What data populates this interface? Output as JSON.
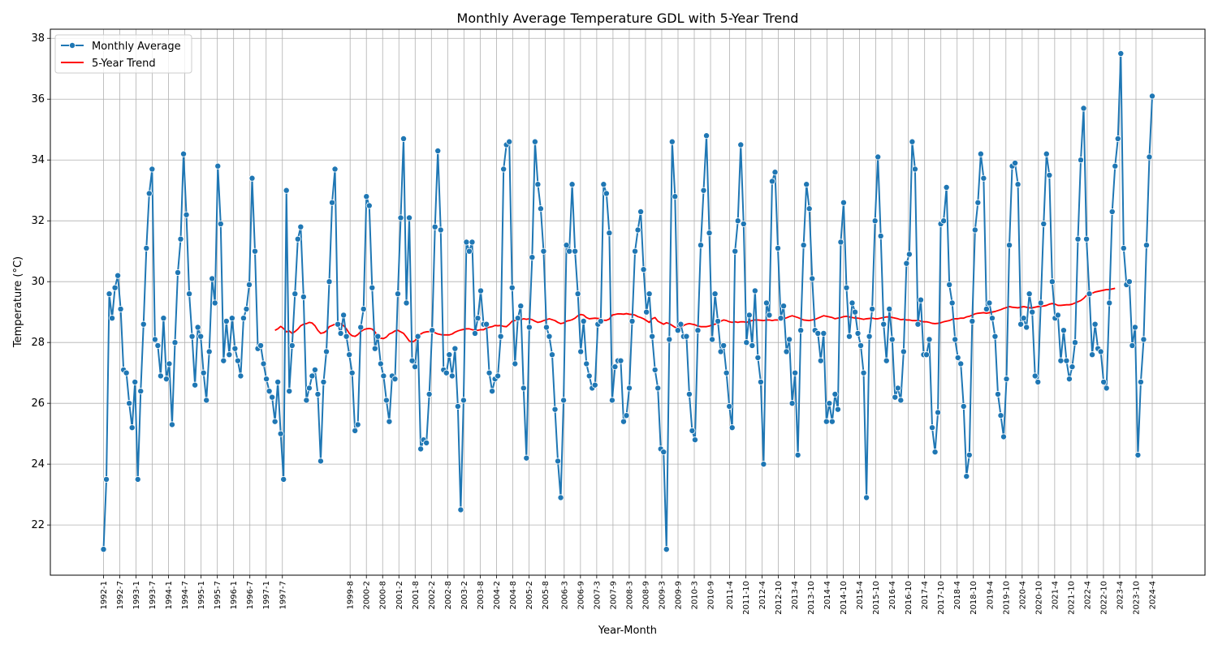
{
  "chart_data": {
    "type": "line",
    "title": "Monthly Average Temperature GDL with 5-Year Trend",
    "xlabel": "Year-Month",
    "ylabel": "Temperature (°C)",
    "ylim": [
      20.35,
      38.3
    ],
    "yticks": [
      22,
      24,
      26,
      28,
      30,
      32,
      34,
      36,
      38
    ],
    "grid": true,
    "legend_position": "top-left",
    "x_start": "1992-1",
    "x_end": "2024-4",
    "xtick_labels": [
      "1992-1",
      "1992-7",
      "1993-1",
      "1993-7",
      "1994-1",
      "1994-7",
      "1995-1",
      "1995-7",
      "1996-1",
      "1996-7",
      "1997-1",
      "1997-7",
      "1999-8",
      "2000-2",
      "2000-8",
      "2001-2",
      "2001-8",
      "2002-2",
      "2002-8",
      "2003-2",
      "2003-8",
      "2004-2",
      "2004-8",
      "2005-2",
      "2005-8",
      "2006-3",
      "2006-9",
      "2007-3",
      "2007-9",
      "2008-3",
      "2008-9",
      "2009-3",
      "2009-9",
      "2010-3",
      "2010-9",
      "2011-4",
      "2011-10",
      "2012-4",
      "2012-10",
      "2013-4",
      "2013-10",
      "2014-4",
      "2014-10",
      "2015-4",
      "2015-10",
      "2016-4",
      "2016-10",
      "2017-4",
      "2017-10",
      "2018-4",
      "2018-10",
      "2019-4",
      "2019-10",
      "2020-4",
      "2020-10",
      "2021-4",
      "2021-10",
      "2022-4",
      "2022-10",
      "2023-4",
      "2023-10",
      "2024-4"
    ],
    "series": [
      {
        "name": "Monthly Average",
        "color": "#1f77b4",
        "style": "line-with-circle-markers",
        "values": [
          21.2,
          23.5,
          29.6,
          28.8,
          29.8,
          30.2,
          29.1,
          27.1,
          27.0,
          26.0,
          25.2,
          26.7,
          23.5,
          26.4,
          28.6,
          31.1,
          32.9,
          33.7,
          28.1,
          27.9,
          26.9,
          28.8,
          26.8,
          27.3,
          25.3,
          28.0,
          30.3,
          31.4,
          34.2,
          32.2,
          29.6,
          28.2,
          26.6,
          28.5,
          28.2,
          27.0,
          26.1,
          27.7,
          30.1,
          29.3,
          33.8,
          31.9,
          27.4,
          28.7,
          27.6,
          28.8,
          27.8,
          27.4,
          26.9,
          28.8,
          29.1,
          29.9,
          33.4,
          31.0,
          27.8,
          27.9,
          27.3,
          26.8,
          26.4,
          26.2,
          25.4,
          26.7,
          25.0,
          23.5,
          33.0,
          26.4,
          27.9,
          29.6,
          31.4,
          31.8,
          29.5,
          26.1,
          26.5,
          26.9,
          27.1,
          26.3,
          24.1,
          26.7,
          27.7,
          30.0,
          32.6,
          33.7,
          28.6,
          28.3,
          28.9,
          28.2,
          27.6,
          27.0,
          25.1,
          25.3,
          28.5,
          29.1,
          32.8,
          32.5,
          29.8,
          27.8,
          28.2,
          27.3,
          26.9,
          26.1,
          25.4,
          26.9,
          26.8,
          29.6,
          32.1,
          34.7,
          29.3,
          32.1,
          27.4,
          27.2,
          28.2,
          24.5,
          24.8,
          24.7,
          26.3,
          28.4,
          31.8,
          34.3,
          31.7,
          27.1,
          27.0,
          27.6,
          26.9,
          27.8,
          25.9,
          22.5,
          26.1,
          31.3,
          31.0,
          31.3,
          28.3,
          28.8,
          29.7,
          28.6,
          28.6,
          27.0,
          26.4,
          26.8,
          26.9,
          28.2,
          33.7,
          34.5,
          34.6,
          29.8,
          27.3,
          28.8,
          29.2,
          26.5,
          24.2,
          28.5,
          30.8,
          34.6,
          33.2,
          32.4,
          31.0,
          28.5,
          28.2,
          27.6,
          25.8,
          24.1,
          22.9,
          26.1,
          31.2,
          31.0,
          33.2,
          31.0,
          29.6,
          27.7,
          28.7,
          27.3,
          26.9,
          26.5,
          26.6,
          28.6,
          28.7,
          33.2,
          32.9,
          31.6,
          26.1,
          27.2,
          27.4,
          27.4,
          25.4,
          25.6,
          26.5,
          28.7,
          31.0,
          31.7,
          32.3,
          30.4,
          29.0,
          29.6,
          28.2,
          27.1,
          26.5,
          24.5,
          24.4,
          21.2,
          28.1,
          34.6,
          32.8,
          28.4,
          28.6,
          28.2,
          28.2,
          26.3,
          25.1,
          24.8,
          28.4,
          31.2,
          33.0,
          34.8,
          31.6,
          28.1,
          29.6,
          28.7,
          27.7,
          27.9,
          27.0,
          25.9,
          25.2,
          31.0,
          32.0,
          34.5,
          31.9,
          28.0,
          28.9,
          27.9,
          29.7,
          27.5,
          26.7,
          24.0,
          29.3,
          28.9,
          33.3,
          33.6,
          31.1,
          28.8,
          29.2,
          27.7,
          28.1,
          26.0,
          27.0,
          24.3,
          28.4,
          31.2,
          33.2,
          32.4,
          30.1,
          28.4,
          28.3,
          27.4,
          28.3,
          25.4,
          26.0,
          25.4,
          26.3,
          25.8,
          31.3,
          32.6,
          29.8,
          28.2,
          29.3,
          29.0,
          28.3,
          27.9,
          27.0,
          22.9,
          28.2,
          29.1,
          32.0,
          34.1,
          31.5,
          28.6,
          27.4,
          29.1,
          28.1,
          26.2,
          26.5,
          26.1,
          27.7,
          30.6,
          30.9,
          34.6,
          33.7,
          28.6,
          29.4,
          27.6,
          27.6,
          28.1,
          25.2,
          24.4,
          25.7,
          31.9,
          32.0,
          33.1,
          29.9,
          29.3,
          28.1,
          27.5,
          27.3,
          25.9,
          23.6,
          24.3,
          28.7,
          31.7,
          32.6,
          34.2,
          33.4,
          29.1,
          29.3,
          28.8,
          28.2,
          26.3,
          25.6,
          24.9,
          26.8,
          31.2,
          33.8,
          33.9,
          33.2,
          28.6,
          28.8,
          28.5,
          29.6,
          29.0,
          26.9,
          26.7,
          29.3,
          31.9,
          34.2,
          33.5,
          30.0,
          28.8,
          28.9,
          27.4,
          28.4,
          27.4,
          26.8,
          27.2,
          28.0,
          31.4,
          34.0,
          35.7,
          31.4,
          29.6,
          27.6,
          28.6,
          27.8,
          27.7,
          26.7,
          26.5,
          29.3,
          32.3,
          33.8,
          34.7,
          37.5,
          31.1,
          29.9,
          30.0,
          27.9,
          28.5,
          24.3,
          26.7,
          28.1,
          31.2,
          34.1,
          36.1
        ]
      },
      {
        "name": "5-Year Trend",
        "color": "#ff0000",
        "style": "line",
        "start_index": 60,
        "values": [
          28.4,
          28.45,
          28.53,
          28.46,
          28.35,
          28.38,
          28.3,
          28.36,
          28.44,
          28.55,
          28.6,
          28.62,
          28.66,
          28.64,
          28.55,
          28.4,
          28.3,
          28.32,
          28.38,
          28.52,
          28.56,
          28.6,
          28.57,
          28.62,
          28.55,
          28.45,
          28.3,
          28.22,
          28.2,
          28.26,
          28.36,
          28.42,
          28.45,
          28.46,
          28.44,
          28.35,
          28.2,
          28.14,
          28.13,
          28.18,
          28.28,
          28.32,
          28.38,
          28.4,
          28.35,
          28.3,
          28.18,
          28.05,
          28.02,
          28.06,
          28.18,
          28.28,
          28.33,
          28.35,
          28.36,
          28.48,
          28.32,
          28.28,
          28.26,
          28.25,
          28.25,
          28.25,
          28.28,
          28.34,
          28.38,
          28.41,
          28.43,
          28.45,
          28.45,
          28.42,
          28.4,
          28.4,
          28.42,
          28.42,
          28.48,
          28.5,
          28.52,
          28.56,
          28.55,
          28.56,
          28.53,
          28.52,
          28.6,
          28.7,
          28.72,
          28.74,
          28.75,
          28.78,
          28.76,
          28.78,
          28.75,
          28.7,
          28.66,
          28.68,
          28.72,
          28.75,
          28.78,
          28.75,
          28.72,
          28.66,
          28.62,
          28.64,
          28.7,
          28.72,
          28.75,
          28.8,
          28.88,
          28.92,
          28.9,
          28.82,
          28.78,
          28.79,
          28.8,
          28.79,
          28.78,
          28.73,
          28.73,
          28.77,
          28.9,
          28.92,
          28.94,
          28.94,
          28.93,
          28.95,
          28.93,
          28.92,
          28.9,
          28.85,
          28.82,
          28.78,
          28.72,
          28.66,
          28.78,
          28.82,
          28.7,
          28.65,
          28.6,
          28.65,
          28.62,
          28.56,
          28.5,
          28.46,
          28.5,
          28.56,
          28.6,
          28.62,
          28.6,
          28.58,
          28.54,
          28.52,
          28.52,
          28.52,
          28.54,
          28.58,
          28.6,
          28.66,
          28.7,
          28.74,
          28.72,
          28.68,
          28.66,
          28.68,
          28.66,
          28.68,
          28.68,
          28.66,
          28.7,
          28.72,
          28.74,
          28.74,
          28.73,
          28.72,
          28.74,
          28.74,
          28.72,
          28.74,
          28.74,
          28.76,
          28.78,
          28.81,
          28.85,
          28.88,
          28.85,
          28.82,
          28.78,
          28.74,
          28.73,
          28.72,
          28.74,
          28.76,
          28.8,
          28.84,
          28.88,
          28.86,
          28.84,
          28.82,
          28.78,
          28.8,
          28.82,
          28.85,
          28.86,
          28.84,
          28.82,
          28.8,
          28.8,
          28.78,
          28.76,
          28.78,
          28.79,
          28.8,
          28.78,
          28.78,
          28.8,
          28.82,
          28.84,
          28.84,
          28.82,
          28.8,
          28.78,
          28.75,
          28.76,
          28.74,
          28.74,
          28.72,
          28.72,
          28.72,
          28.7,
          28.68,
          28.68,
          28.66,
          28.63,
          28.62,
          28.63,
          28.65,
          28.68,
          28.7,
          28.72,
          28.76,
          28.78,
          28.78,
          28.8,
          28.8,
          28.84,
          28.86,
          28.9,
          28.94,
          28.96,
          28.97,
          28.98,
          28.96,
          28.98,
          29.0,
          29.02,
          29.05,
          29.08,
          29.12,
          29.15,
          29.18,
          29.16,
          29.15,
          29.14,
          29.16,
          29.18,
          29.16,
          29.14,
          29.14,
          29.16,
          29.18,
          29.19,
          29.2,
          29.22,
          29.26,
          29.28,
          29.26,
          29.22,
          29.22,
          29.23,
          29.24,
          29.24,
          29.26,
          29.3,
          29.34,
          29.38,
          29.45,
          29.55,
          29.6,
          29.62,
          29.66,
          29.68,
          29.7,
          29.72,
          29.74,
          29.74,
          29.76,
          29.78
        ]
      }
    ]
  }
}
